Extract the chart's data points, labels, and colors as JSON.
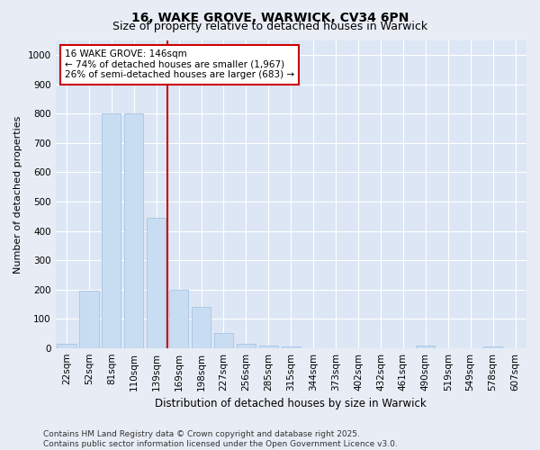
{
  "title": "16, WAKE GROVE, WARWICK, CV34 6PN",
  "subtitle": "Size of property relative to detached houses in Warwick",
  "xlabel": "Distribution of detached houses by size in Warwick",
  "ylabel": "Number of detached properties",
  "categories": [
    "22sqm",
    "52sqm",
    "81sqm",
    "110sqm",
    "139sqm",
    "169sqm",
    "198sqm",
    "227sqm",
    "256sqm",
    "285sqm",
    "315sqm",
    "344sqm",
    "373sqm",
    "402sqm",
    "432sqm",
    "461sqm",
    "490sqm",
    "519sqm",
    "549sqm",
    "578sqm",
    "607sqm"
  ],
  "values": [
    15,
    195,
    800,
    800,
    445,
    200,
    140,
    50,
    15,
    8,
    5,
    0,
    0,
    0,
    0,
    0,
    8,
    0,
    0,
    5,
    0
  ],
  "bar_color": "#c9ddf2",
  "bar_edgecolor": "#a8c4e0",
  "vline_pos": 4.5,
  "vline_color": "#cc0000",
  "annotation_line1": "16 WAKE GROVE: 146sqm",
  "annotation_line2": "← 74% of detached houses are smaller (1,967)",
  "annotation_line3": "26% of semi-detached houses are larger (683) →",
  "annotation_box_facecolor": "#ffffff",
  "annotation_box_edgecolor": "#cc0000",
  "ylim": [
    0,
    1050
  ],
  "yticks": [
    0,
    100,
    200,
    300,
    400,
    500,
    600,
    700,
    800,
    900,
    1000
  ],
  "bg_color": "#e8edf5",
  "plot_bg_color": "#dce6f5",
  "grid_color": "#ffffff",
  "footer": "Contains HM Land Registry data © Crown copyright and database right 2025.\nContains public sector information licensed under the Open Government Licence v3.0.",
  "title_fontsize": 10,
  "subtitle_fontsize": 9,
  "xlabel_fontsize": 8.5,
  "ylabel_fontsize": 8,
  "tick_fontsize": 7.5,
  "footer_fontsize": 6.5,
  "annotation_fontsize": 7.5
}
